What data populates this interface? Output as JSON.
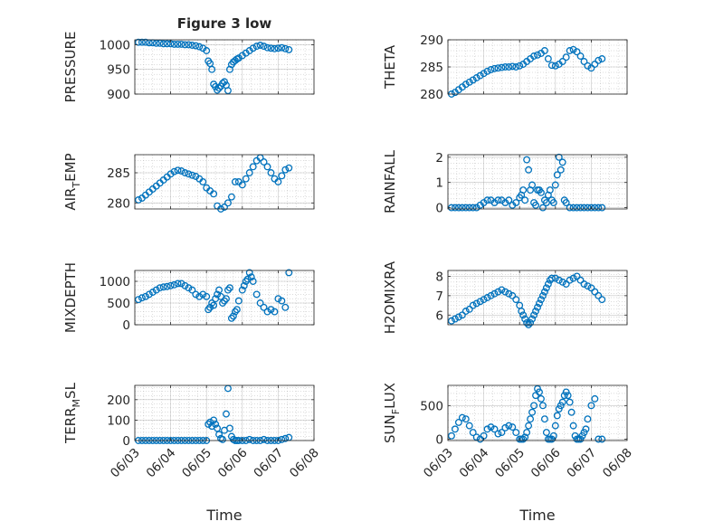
{
  "figure": {
    "title": "Figure 3 low",
    "marker_color": "#0072BD",
    "axis_color": "#262626",
    "grid_color": "#8c8c8c",
    "left_xlabel": "Time",
    "right_xlabel": "Time"
  },
  "chart_data": [
    {
      "type": "scatter",
      "title": "Figure 3 low",
      "ylabel": "PRESSURE",
      "xlabel": "",
      "xlim": [
        0,
        5
      ],
      "ylim": [
        900,
        1010
      ],
      "xticks": [
        "06/03",
        "06/04",
        "06/05",
        "06/06",
        "06/07",
        "06/08"
      ],
      "yticks": [
        900,
        950,
        1000
      ],
      "grid": true,
      "xtick_labels_shown": false,
      "series": [
        {
          "x": [
            0.1,
            0.2,
            0.3,
            0.4,
            0.5,
            0.6,
            0.7,
            0.8,
            0.9,
            1.0,
            1.1,
            1.2,
            1.3,
            1.4,
            1.5,
            1.6,
            1.7,
            1.8,
            1.9,
            2.0,
            2.05,
            2.1,
            2.15,
            2.2,
            2.25,
            2.3,
            2.35,
            2.4,
            2.45,
            2.5,
            2.55,
            2.6,
            2.65,
            2.7,
            2.75,
            2.8,
            2.85,
            2.9,
            3.0,
            3.1,
            3.2,
            3.3,
            3.4,
            3.5,
            3.6,
            3.7,
            3.8,
            3.9,
            4.0,
            4.1,
            4.2,
            4.3
          ],
          "y": [
            1005,
            1005,
            1005,
            1004,
            1004,
            1003,
            1003,
            1002,
            1002,
            1002,
            1001,
            1001,
            1001,
            1000,
            1000,
            999,
            998,
            996,
            993,
            988,
            967,
            962,
            950,
            920,
            915,
            908,
            912,
            916,
            922,
            925,
            918,
            907,
            950,
            960,
            965,
            968,
            971,
            973,
            978,
            983,
            988,
            993,
            997,
            999,
            997,
            994,
            993,
            992,
            993,
            994,
            992,
            990
          ]
        }
      ]
    },
    {
      "type": "scatter",
      "ylabel": "THETA",
      "xlabel": "",
      "xlim": [
        0,
        5
      ],
      "ylim": [
        280,
        290
      ],
      "xticks": [
        "06/03",
        "06/04",
        "06/05",
        "06/06",
        "06/07",
        "06/08"
      ],
      "yticks": [
        280,
        285,
        290
      ],
      "grid": true,
      "xtick_labels_shown": false,
      "series": [
        {
          "x": [
            0.1,
            0.2,
            0.3,
            0.4,
            0.5,
            0.6,
            0.7,
            0.8,
            0.9,
            1.0,
            1.1,
            1.2,
            1.3,
            1.4,
            1.5,
            1.6,
            1.7,
            1.8,
            1.9,
            2.0,
            2.1,
            2.2,
            2.3,
            2.4,
            2.5,
            2.6,
            2.7,
            2.8,
            2.9,
            3.0,
            3.1,
            3.2,
            3.3,
            3.4,
            3.5,
            3.6,
            3.7,
            3.8,
            3.9,
            4.0,
            4.1,
            4.2,
            4.3
          ],
          "y": [
            280,
            280.3,
            280.8,
            281.3,
            281.8,
            282.2,
            282.6,
            283.0,
            283.4,
            283.8,
            284.2,
            284.5,
            284.7,
            284.8,
            284.9,
            285.0,
            285.0,
            285.1,
            285.0,
            285.2,
            285.5,
            286.0,
            286.5,
            287.0,
            287.2,
            287.5,
            288.0,
            286.5,
            285.3,
            285.2,
            285.5,
            286.0,
            286.8,
            288.0,
            288.2,
            287.8,
            287.0,
            286.0,
            285.2,
            284.8,
            285.5,
            286.2,
            286.5
          ]
        }
      ]
    },
    {
      "type": "scatter",
      "ylabel": "AIR_TEMP",
      "ylabel_main": "AIR",
      "ylabel_sub": "T",
      "ylabel_rest": "EMP",
      "xlabel": "",
      "xlim": [
        0,
        5
      ],
      "ylim": [
        279,
        288
      ],
      "xticks": [
        "06/03",
        "06/04",
        "06/05",
        "06/06",
        "06/07",
        "06/08"
      ],
      "yticks": [
        280,
        285
      ],
      "grid": true,
      "xtick_labels_shown": false,
      "series": [
        {
          "x": [
            0.1,
            0.2,
            0.3,
            0.4,
            0.5,
            0.6,
            0.7,
            0.8,
            0.9,
            1.0,
            1.1,
            1.2,
            1.3,
            1.4,
            1.5,
            1.6,
            1.7,
            1.8,
            1.9,
            2.0,
            2.1,
            2.2,
            2.3,
            2.4,
            2.5,
            2.6,
            2.7,
            2.8,
            2.9,
            3.0,
            3.1,
            3.2,
            3.3,
            3.4,
            3.5,
            3.6,
            3.7,
            3.8,
            3.9,
            4.0,
            4.1,
            4.2,
            4.3
          ],
          "y": [
            280.5,
            280.8,
            281.3,
            281.8,
            282.3,
            282.8,
            283.3,
            283.8,
            284.3,
            284.8,
            285.2,
            285.4,
            285.3,
            285.0,
            284.8,
            284.6,
            284.4,
            284.0,
            283.5,
            282.5,
            282.0,
            281.5,
            279.5,
            279.0,
            279.3,
            280.0,
            281.0,
            283.5,
            283.5,
            283.0,
            284.0,
            285.0,
            286.0,
            287.0,
            287.5,
            286.8,
            286.0,
            285.0,
            284.0,
            283.5,
            284.5,
            285.5,
            285.8
          ]
        }
      ]
    },
    {
      "type": "scatter",
      "ylabel": "RAINFALL",
      "xlabel": "",
      "xlim": [
        0,
        5
      ],
      "ylim": [
        -0.05,
        2.1
      ],
      "xticks": [
        "06/03",
        "06/04",
        "06/05",
        "06/06",
        "06/07",
        "06/08"
      ],
      "yticks": [
        0,
        1,
        2
      ],
      "grid": true,
      "xtick_labels_shown": false,
      "series": [
        {
          "x": [
            0.1,
            0.2,
            0.3,
            0.4,
            0.5,
            0.6,
            0.7,
            0.8,
            0.9,
            1.0,
            1.1,
            1.2,
            1.3,
            1.4,
            1.5,
            1.6,
            1.7,
            1.8,
            1.9,
            2.0,
            2.05,
            2.1,
            2.15,
            2.2,
            2.25,
            2.3,
            2.35,
            2.4,
            2.45,
            2.5,
            2.55,
            2.6,
            2.65,
            2.7,
            2.75,
            2.8,
            2.85,
            2.9,
            2.95,
            3.0,
            3.05,
            3.1,
            3.15,
            3.2,
            3.25,
            3.3,
            3.4,
            3.5,
            3.6,
            3.7,
            3.8,
            3.9,
            4.0,
            4.1,
            4.2,
            4.3
          ],
          "y": [
            0,
            0,
            0,
            0,
            0,
            0,
            0,
            0,
            0.1,
            0.2,
            0.3,
            0.3,
            0.2,
            0.3,
            0.3,
            0.2,
            0.3,
            0.1,
            0.2,
            0.4,
            0.5,
            0.7,
            0.3,
            1.9,
            1.5,
            0.7,
            0.9,
            0.2,
            0.1,
            0.7,
            0.7,
            0.6,
            0.0,
            0.3,
            0.2,
            0.5,
            0.7,
            0.3,
            0.2,
            0.9,
            1.3,
            2.0,
            1.5,
            1.8,
            0.3,
            0.2,
            0,
            0,
            0,
            0,
            0,
            0,
            0,
            0,
            0,
            0
          ]
        }
      ]
    },
    {
      "type": "scatter",
      "ylabel": "MIXDEPTH",
      "xlabel": "",
      "xlim": [
        0,
        5
      ],
      "ylim": [
        0,
        1250
      ],
      "xticks": [
        "06/03",
        "06/04",
        "06/05",
        "06/06",
        "06/07",
        "06/08"
      ],
      "yticks": [
        0,
        500,
        1000
      ],
      "grid": true,
      "xtick_labels_shown": false,
      "series": [
        {
          "x": [
            0.1,
            0.2,
            0.3,
            0.4,
            0.5,
            0.6,
            0.7,
            0.8,
            0.9,
            1.0,
            1.1,
            1.2,
            1.3,
            1.4,
            1.5,
            1.6,
            1.7,
            1.8,
            1.9,
            2.0,
            2.05,
            2.1,
            2.15,
            2.2,
            2.25,
            2.3,
            2.35,
            2.4,
            2.45,
            2.5,
            2.55,
            2.6,
            2.65,
            2.7,
            2.75,
            2.8,
            2.85,
            2.9,
            3.0,
            3.05,
            3.1,
            3.15,
            3.2,
            3.25,
            3.3,
            3.4,
            3.5,
            3.6,
            3.7,
            3.8,
            3.9,
            4.0,
            4.1,
            4.2,
            4.3
          ],
          "y": [
            580,
            620,
            650,
            700,
            750,
            800,
            850,
            870,
            880,
            900,
            920,
            950,
            950,
            900,
            850,
            800,
            700,
            650,
            700,
            650,
            350,
            400,
            500,
            450,
            600,
            700,
            800,
            650,
            500,
            550,
            600,
            800,
            850,
            150,
            200,
            300,
            350,
            550,
            800,
            900,
            1000,
            1050,
            1200,
            1100,
            1000,
            700,
            500,
            400,
            300,
            350,
            300,
            600,
            550,
            400,
            1200
          ]
        }
      ]
    },
    {
      "type": "scatter",
      "ylabel": "H2OMIXRA",
      "xlabel": "",
      "xlim": [
        0,
        5
      ],
      "ylim": [
        5.5,
        8.3
      ],
      "xticks": [
        "06/03",
        "06/04",
        "06/05",
        "06/06",
        "06/07",
        "06/08"
      ],
      "yticks": [
        6,
        7,
        8
      ],
      "grid": true,
      "xtick_labels_shown": false,
      "series": [
        {
          "x": [
            0.1,
            0.2,
            0.3,
            0.4,
            0.5,
            0.6,
            0.7,
            0.8,
            0.9,
            1.0,
            1.1,
            1.2,
            1.3,
            1.4,
            1.5,
            1.6,
            1.7,
            1.8,
            1.9,
            2.0,
            2.05,
            2.1,
            2.15,
            2.2,
            2.25,
            2.3,
            2.35,
            2.4,
            2.45,
            2.5,
            2.55,
            2.6,
            2.65,
            2.7,
            2.75,
            2.8,
            2.85,
            2.9,
            3.0,
            3.1,
            3.2,
            3.3,
            3.4,
            3.5,
            3.6,
            3.7,
            3.8,
            3.9,
            4.0,
            4.1,
            4.2,
            4.3
          ],
          "y": [
            5.7,
            5.8,
            5.9,
            6.0,
            6.2,
            6.3,
            6.5,
            6.6,
            6.7,
            6.8,
            6.9,
            7.0,
            7.1,
            7.2,
            7.3,
            7.2,
            7.1,
            7.0,
            6.8,
            6.5,
            6.2,
            6.0,
            5.8,
            5.6,
            5.5,
            5.6,
            5.8,
            6.0,
            6.2,
            6.4,
            6.6,
            6.8,
            7.0,
            7.2,
            7.4,
            7.6,
            7.8,
            7.9,
            7.9,
            7.8,
            7.7,
            7.6,
            7.8,
            7.9,
            8.0,
            7.8,
            7.6,
            7.5,
            7.4,
            7.2,
            7.0,
            6.8
          ]
        }
      ]
    },
    {
      "type": "scatter",
      "ylabel": "TERR_MSL",
      "ylabel_main": "TERR",
      "ylabel_sub": "M",
      "ylabel_rest": "SL",
      "xlabel": "Time",
      "xlim": [
        0,
        5
      ],
      "ylim": [
        0,
        270
      ],
      "xticks": [
        "06/03",
        "06/04",
        "06/05",
        "06/06",
        "06/07",
        "06/08"
      ],
      "yticks": [
        0,
        100,
        200
      ],
      "grid": true,
      "xtick_labels_shown": true,
      "series": [
        {
          "x": [
            0.1,
            0.2,
            0.3,
            0.4,
            0.5,
            0.6,
            0.7,
            0.8,
            0.9,
            1.0,
            1.1,
            1.2,
            1.3,
            1.4,
            1.5,
            1.6,
            1.7,
            1.8,
            1.9,
            2.0,
            2.05,
            2.1,
            2.15,
            2.2,
            2.25,
            2.3,
            2.35,
            2.4,
            2.45,
            2.5,
            2.55,
            2.6,
            2.65,
            2.7,
            2.75,
            2.8,
            2.85,
            2.9,
            3.0,
            3.1,
            3.2,
            3.3,
            3.4,
            3.5,
            3.6,
            3.7,
            3.8,
            3.9,
            4.0,
            4.1,
            4.2,
            4.3
          ],
          "y": [
            0,
            0,
            0,
            0,
            0,
            0,
            0,
            0,
            0,
            0,
            0,
            0,
            0,
            0,
            0,
            0,
            0,
            0,
            0,
            0,
            80,
            90,
            70,
            100,
            80,
            60,
            30,
            10,
            5,
            50,
            130,
            255,
            60,
            20,
            5,
            0,
            0,
            0,
            0,
            0,
            5,
            0,
            0,
            0,
            5,
            0,
            0,
            0,
            0,
            5,
            10,
            15
          ]
        }
      ]
    },
    {
      "type": "scatter",
      "ylabel": "SUN_FLUX",
      "ylabel_main": "SUN",
      "ylabel_sub": "F",
      "ylabel_rest": "LUX",
      "xlabel": "Time",
      "xlim": [
        0,
        5
      ],
      "ylim": [
        -20,
        800
      ],
      "xticks": [
        "06/03",
        "06/04",
        "06/05",
        "06/06",
        "06/07",
        "06/08"
      ],
      "yticks": [
        0,
        500
      ],
      "grid": true,
      "xtick_labels_shown": true,
      "series": [
        {
          "x": [
            0.1,
            0.2,
            0.3,
            0.4,
            0.5,
            0.6,
            0.7,
            0.8,
            0.9,
            1.0,
            1.1,
            1.2,
            1.3,
            1.4,
            1.5,
            1.6,
            1.7,
            1.8,
            1.9,
            2.0,
            2.05,
            2.1,
            2.15,
            2.2,
            2.25,
            2.3,
            2.35,
            2.4,
            2.45,
            2.5,
            2.55,
            2.6,
            2.65,
            2.7,
            2.75,
            2.8,
            2.85,
            2.9,
            2.95,
            3.0,
            3.05,
            3.1,
            3.15,
            3.2,
            3.25,
            3.3,
            3.35,
            3.4,
            3.45,
            3.5,
            3.55,
            3.6,
            3.65,
            3.7,
            3.75,
            3.8,
            3.85,
            3.9,
            4.0,
            4.1,
            4.2,
            4.3
          ],
          "y": [
            50,
            150,
            250,
            320,
            300,
            200,
            100,
            30,
            0,
            50,
            150,
            180,
            150,
            80,
            100,
            170,
            200,
            180,
            100,
            0,
            0,
            0,
            30,
            100,
            200,
            300,
            400,
            500,
            650,
            750,
            700,
            600,
            500,
            300,
            100,
            0,
            0,
            0,
            50,
            200,
            350,
            450,
            500,
            550,
            650,
            700,
            650,
            550,
            400,
            200,
            50,
            0,
            0,
            0,
            50,
            100,
            150,
            300,
            500,
            600,
            0,
            0
          ]
        }
      ]
    }
  ]
}
